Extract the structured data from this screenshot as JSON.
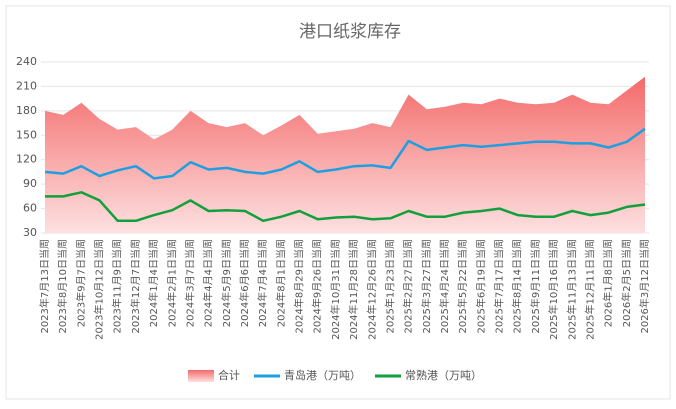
{
  "chart_data": {
    "type": "area_line",
    "title": "港口纸浆库存",
    "categories": [
      "2023年7月13日当周",
      "2023年8月10日当周",
      "2023年9月7日当周",
      "2023年10月12日当周",
      "2023年11月9日当周",
      "2023年12月7日当周",
      "2024年1月4日当周",
      "2024年2月1日当周",
      "2024年3月7日当周",
      "2024年4月4日当周",
      "2024年5月9日当周",
      "2024年6月6日当周",
      "2024年7月4日当周",
      "2024年8月1日当周",
      "2024年8月29日当周",
      "2024年9月26日当周",
      "2024年10月31日当周",
      "2024年11月28日当周",
      "2024年12月26日当周",
      "2025年1月23日当周",
      "2025年2月27日当周",
      "2025年3月27日当周",
      "2025年4月24日当周",
      "2025年5月22日当周",
      "2025年6月19日当周",
      "2025年7月17日当周",
      "2025年8月14日当周",
      "2025年9月11日当周",
      "2025年10月16日当周",
      "2025年11月13日当周",
      "2025年12月11日当周",
      "2026年1月8日当周",
      "2026年2月5日当周",
      "2026年3月12日当周"
    ],
    "series": [
      {
        "name": "合计",
        "kind": "area",
        "color": "#f46a6a",
        "values": [
          180,
          175,
          190,
          170,
          157,
          160,
          145,
          157,
          180,
          165,
          160,
          165,
          150,
          162,
          175,
          152,
          155,
          158,
          165,
          160,
          200,
          182,
          185,
          190,
          188,
          195,
          190,
          188,
          190,
          200,
          190,
          188,
          205,
          222
        ]
      },
      {
        "name": "青岛港（万吨）",
        "kind": "line",
        "color": "#1f9fe2",
        "values": [
          105,
          103,
          112,
          100,
          107,
          112,
          97,
          100,
          117,
          108,
          110,
          105,
          103,
          108,
          118,
          105,
          108,
          112,
          113,
          110,
          143,
          132,
          135,
          138,
          136,
          138,
          140,
          142,
          142,
          140,
          140,
          135,
          142,
          158
        ]
      },
      {
        "name": "常熟港（万吨）",
        "kind": "line",
        "color": "#12a03c",
        "values": [
          75,
          75,
          80,
          70,
          45,
          45,
          52,
          58,
          70,
          57,
          58,
          57,
          45,
          50,
          57,
          47,
          49,
          50,
          47,
          48,
          57,
          50,
          50,
          55,
          57,
          60,
          52,
          50,
          50,
          57,
          52,
          55,
          62,
          65
        ]
      }
    ],
    "ylim": [
      30,
      240
    ],
    "yticks": [
      30,
      60,
      90,
      120,
      150,
      180,
      210,
      240
    ],
    "grid": true,
    "legend": "bottom"
  }
}
